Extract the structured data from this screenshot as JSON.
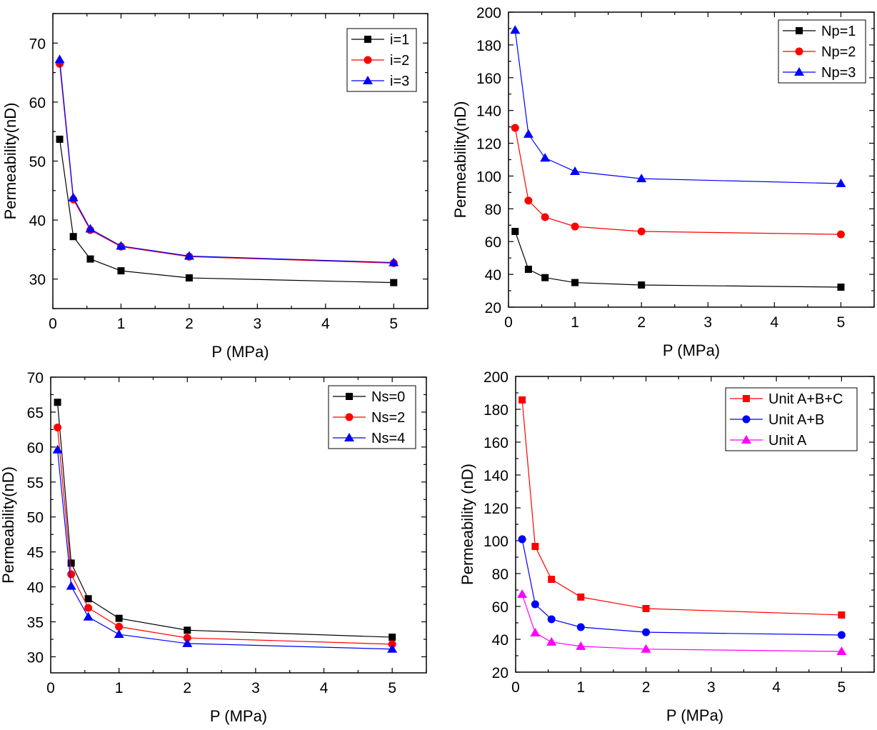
{
  "chart_data": [
    {
      "type": "line",
      "xlabel": "P (MPa)",
      "ylabel": "Permeability(nD)",
      "xlim": [
        0,
        5.5
      ],
      "ylim": [
        25,
        75
      ],
      "xticks": [
        0,
        1,
        2,
        3,
        4,
        5
      ],
      "yticks": [
        30,
        40,
        50,
        60,
        70
      ],
      "legend_position": "top-right",
      "x": [
        0.1,
        0.3,
        0.55,
        1,
        2,
        5
      ],
      "series": [
        {
          "name": "i=1",
          "color": "#000000",
          "marker": "square",
          "values": [
            53.7,
            37.2,
            33.4,
            31.4,
            30.2,
            29.4
          ]
        },
        {
          "name": "i=2",
          "color": "#ff0000",
          "marker": "circle",
          "values": [
            66.5,
            43.5,
            38.3,
            35.5,
            33.8,
            32.7
          ]
        },
        {
          "name": "i=3",
          "color": "#0000ff",
          "marker": "triangle",
          "values": [
            67.2,
            43.8,
            38.5,
            35.6,
            33.9,
            32.8
          ]
        }
      ]
    },
    {
      "type": "line",
      "xlabel": "P (MPa)",
      "ylabel": "Permeability(nD)",
      "xlim": [
        0,
        5.5
      ],
      "ylim": [
        20,
        200
      ],
      "xticks": [
        0,
        1,
        2,
        3,
        4,
        5
      ],
      "yticks": [
        20,
        40,
        60,
        80,
        100,
        120,
        140,
        160,
        180,
        200
      ],
      "legend_position": "top-right",
      "x": [
        0.1,
        0.3,
        0.55,
        1,
        2,
        5
      ],
      "series": [
        {
          "name": "Np=1",
          "color": "#000000",
          "marker": "square",
          "values": [
            66.2,
            43.1,
            38.0,
            35.0,
            33.5,
            32.2
          ]
        },
        {
          "name": "Np=2",
          "color": "#ff0000",
          "marker": "circle",
          "values": [
            129.4,
            85.0,
            74.9,
            69.2,
            66.2,
            64.4
          ]
        },
        {
          "name": "Np=3",
          "color": "#0000ff",
          "marker": "triangle",
          "values": [
            189.0,
            125.5,
            111.0,
            102.8,
            98.4,
            95.4
          ]
        }
      ]
    },
    {
      "type": "line",
      "xlabel": "P (MPa)",
      "ylabel": "Permeability(nD)",
      "xlim": [
        0,
        5.5
      ],
      "ylim": [
        27.7,
        70
      ],
      "xticks": [
        0,
        1,
        2,
        3,
        4,
        5
      ],
      "yticks": [
        30,
        35,
        40,
        45,
        50,
        55,
        60,
        65,
        70
      ],
      "legend_position": "top-right",
      "x": [
        0.1,
        0.3,
        0.55,
        1,
        2,
        5
      ],
      "series": [
        {
          "name": "Ns=0",
          "color": "#000000",
          "marker": "square",
          "values": [
            66.4,
            43.4,
            38.3,
            35.5,
            33.8,
            32.8
          ]
        },
        {
          "name": "Ns=2",
          "color": "#ff0000",
          "marker": "circle",
          "values": [
            62.8,
            41.8,
            37.0,
            34.3,
            32.7,
            31.8
          ]
        },
        {
          "name": "Ns=4",
          "color": "#0000ff",
          "marker": "triangle",
          "values": [
            59.6,
            40.1,
            35.7,
            33.2,
            31.9,
            31.1
          ]
        }
      ]
    },
    {
      "type": "line",
      "xlabel": "P (MPa)",
      "ylabel": "Permeability (nD)",
      "xlim": [
        0,
        5.5
      ],
      "ylim": [
        20,
        200
      ],
      "xticks": [
        0,
        1,
        2,
        3,
        4,
        5
      ],
      "yticks": [
        20,
        40,
        60,
        80,
        100,
        120,
        140,
        160,
        180,
        200
      ],
      "legend_position": "top-right",
      "x": [
        0.1,
        0.3,
        0.55,
        1,
        2,
        5
      ],
      "series": [
        {
          "name": "Unit A+B+C",
          "color": "#ff0000",
          "marker": "square",
          "values": [
            185.7,
            96.5,
            76.5,
            65.7,
            58.7,
            54.8
          ]
        },
        {
          "name": "Unit A+B",
          "color": "#0000ff",
          "marker": "circle",
          "values": [
            100.9,
            61.3,
            52.2,
            47.4,
            44.3,
            42.6
          ]
        },
        {
          "name": "Unit A",
          "color": "#ff00ff",
          "marker": "triangle",
          "values": [
            67.4,
            43.9,
            38.3,
            35.7,
            34.0,
            32.6
          ]
        }
      ]
    }
  ]
}
